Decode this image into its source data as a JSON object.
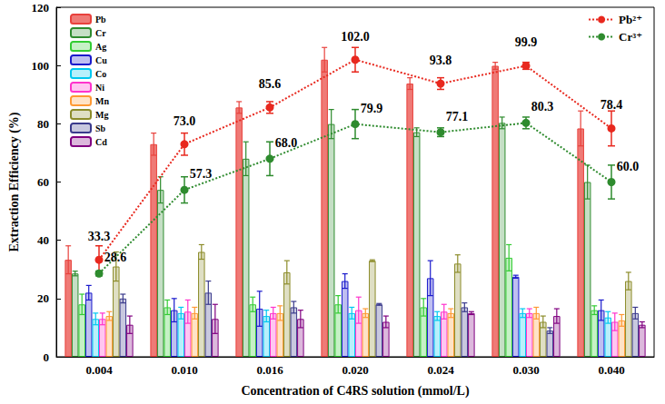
{
  "chart_data": {
    "type": "bar",
    "x_label": "Concentration of C4RS solution (mmol/L)",
    "y_label": "Extraction Efficiency (%)",
    "categories": [
      "0.004",
      "0.010",
      "0.016",
      "0.020",
      "0.024",
      "0.030",
      "0.040"
    ],
    "ylim": [
      0,
      120
    ],
    "yticks": [
      0,
      20,
      40,
      60,
      80,
      100,
      120
    ],
    "grid": false,
    "legend": "upper left",
    "series": [
      {
        "name": "Pb",
        "type": "bar",
        "color": "#e8413c",
        "values": [
          33.3,
          73.0,
          85.6,
          102.0,
          93.8,
          99.9,
          78.4
        ],
        "errors": [
          4.8,
          3.8,
          2.0,
          4.2,
          2.0,
          1.2,
          6.0
        ]
      },
      {
        "name": "Cr",
        "type": "bar",
        "color": "#2e8b2e",
        "values": [
          28.6,
          57.3,
          68.0,
          79.9,
          77.1,
          80.3,
          60.0
        ],
        "errors": [
          0.8,
          4.5,
          5.8,
          5.0,
          1.5,
          2.0,
          5.8
        ]
      },
      {
        "name": "Ag",
        "type": "bar",
        "color": "#33cc33",
        "values": [
          18,
          17,
          18,
          18,
          17,
          34,
          16
        ],
        "errors": [
          3.5,
          2.5,
          2.5,
          3.0,
          3.0,
          4.5,
          1.5
        ]
      },
      {
        "name": "Cu",
        "type": "bar",
        "color": "#1a1acc",
        "values": [
          22,
          16,
          16.5,
          26,
          27,
          27.5,
          16
        ],
        "errors": [
          2.5,
          4.0,
          6.0,
          2.5,
          6.0,
          0.5,
          3.5
        ]
      },
      {
        "name": "Co",
        "type": "bar",
        "color": "#00c8f0",
        "values": [
          13,
          15,
          14,
          15,
          14,
          15,
          13.5
        ],
        "errors": [
          2.0,
          2.0,
          2.0,
          2.0,
          1.5,
          1.5,
          2.0
        ]
      },
      {
        "name": "Ni",
        "type": "bar",
        "color": "#ff33cc",
        "values": [
          13,
          15.5,
          15,
          16,
          15.5,
          15,
          12
        ],
        "errors": [
          2.0,
          4.0,
          2.0,
          4.5,
          2.5,
          1.5,
          3.0
        ]
      },
      {
        "name": "Mn",
        "type": "bar",
        "color": "#ff9933",
        "values": [
          14,
          15,
          15,
          15,
          15,
          15,
          12.5
        ],
        "errors": [
          1.5,
          2.0,
          2.5,
          1.5,
          1.5,
          2.0,
          2.0
        ]
      },
      {
        "name": "Mg",
        "type": "bar",
        "color": "#8c8c2a",
        "values": [
          31,
          36,
          29,
          33,
          32,
          12,
          26
        ],
        "errors": [
          5.0,
          2.5,
          4.0,
          0.3,
          3.0,
          2.0,
          3.0
        ]
      },
      {
        "name": "Sb",
        "type": "bar",
        "color": "#3a3a8c",
        "values": [
          20,
          22,
          17,
          18,
          17,
          9,
          15
        ],
        "errors": [
          1.5,
          4.0,
          2.0,
          0.3,
          1.5,
          1.0,
          2.0
        ]
      },
      {
        "name": "Cd",
        "type": "bar",
        "color": "#800080",
        "values": [
          11,
          13,
          13,
          12,
          15,
          14,
          11
        ],
        "errors": [
          3.0,
          5.0,
          3.0,
          2.0,
          0.5,
          2.5,
          1.0
        ]
      },
      {
        "name": "Pb²⁺",
        "type": "line",
        "color": "#e8281e",
        "line_style": "dotted",
        "marker": "circle",
        "data_labels": true,
        "values": [
          33.3,
          73.0,
          85.6,
          102.0,
          93.8,
          99.9,
          78.4
        ],
        "value_labels": [
          "33.3",
          "73.0",
          "85.6",
          "102.0",
          "93.8",
          "99.9",
          "78.4"
        ],
        "errors": [
          4.8,
          3.8,
          2.0,
          4.2,
          2.0,
          1.2,
          6.0
        ]
      },
      {
        "name": "Cr³⁺",
        "type": "line",
        "color": "#2e8b2e",
        "line_style": "dotted",
        "marker": "circle",
        "data_labels": true,
        "values": [
          28.6,
          57.3,
          68.0,
          79.9,
          77.1,
          80.3,
          60.0
        ],
        "value_labels": [
          "28.6",
          "57.3",
          "68.0",
          "79.9",
          "77.1",
          "80.3",
          "60.0"
        ],
        "errors": [
          0.8,
          4.5,
          5.8,
          5.0,
          1.5,
          2.0,
          5.8
        ]
      }
    ]
  }
}
